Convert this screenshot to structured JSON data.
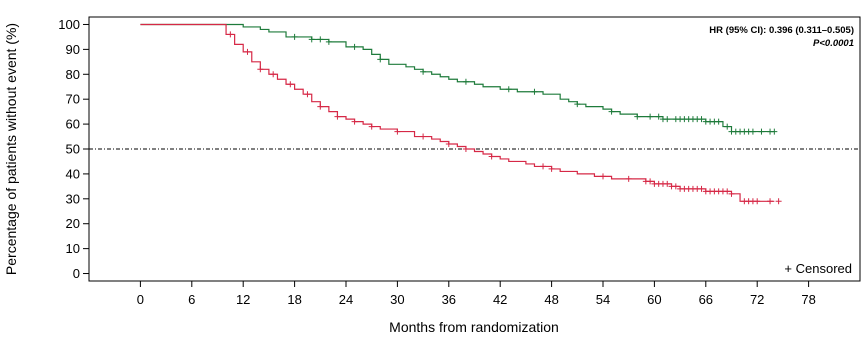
{
  "chart_data": {
    "type": "line",
    "subtype": "kaplan-meier",
    "title": "",
    "xlabel": "Months from randomization",
    "ylabel": "Percentage of patients without event (%)",
    "xlim": [
      -6,
      84
    ],
    "ylim": [
      -3,
      103
    ],
    "x_ticks": [
      0,
      6,
      12,
      18,
      24,
      30,
      36,
      42,
      48,
      54,
      60,
      66,
      72,
      78
    ],
    "y_ticks": [
      0,
      10,
      20,
      30,
      40,
      50,
      60,
      70,
      80,
      90,
      100
    ],
    "reference_line": {
      "y": 50,
      "style": "dash-dot",
      "color": "#000000"
    },
    "annotation": {
      "hr_text": "HR (95% CI): 0.396 (0.311–0.505)",
      "p_text": "P<0.0001"
    },
    "legend": {
      "censored_label": "+ Censored",
      "placement": "bottom-right"
    },
    "grid": false,
    "series": [
      {
        "color": "#1e7b3b",
        "points": [
          [
            0,
            100
          ],
          [
            9,
            100
          ],
          [
            12,
            99
          ],
          [
            14,
            98
          ],
          [
            15,
            97
          ],
          [
            17,
            95
          ],
          [
            19,
            95
          ],
          [
            20,
            94
          ],
          [
            22,
            93
          ],
          [
            24,
            91
          ],
          [
            26,
            90
          ],
          [
            27,
            88
          ],
          [
            28,
            86
          ],
          [
            29,
            84
          ],
          [
            31,
            83
          ],
          [
            32,
            82
          ],
          [
            33,
            81
          ],
          [
            34,
            80
          ],
          [
            35,
            79
          ],
          [
            36,
            78
          ],
          [
            37,
            77
          ],
          [
            39,
            76
          ],
          [
            40,
            75
          ],
          [
            42,
            74
          ],
          [
            44,
            73
          ],
          [
            46,
            73
          ],
          [
            47,
            72
          ],
          [
            49,
            70
          ],
          [
            50,
            69
          ],
          [
            51,
            68
          ],
          [
            52,
            67
          ],
          [
            54,
            66
          ],
          [
            55,
            65
          ],
          [
            56,
            64
          ],
          [
            58,
            63
          ],
          [
            59,
            63
          ],
          [
            61,
            62
          ],
          [
            64,
            62
          ],
          [
            66,
            61
          ],
          [
            67,
            61
          ],
          [
            68,
            59
          ],
          [
            69,
            57
          ],
          [
            71,
            57
          ],
          [
            74,
            57
          ]
        ],
        "censored": [
          18,
          20,
          21,
          22,
          25,
          28,
          33,
          38,
          43,
          46,
          51,
          55,
          58,
          59.5,
          60.5,
          61,
          61.5,
          62.5,
          63,
          63.5,
          64,
          64.5,
          65,
          65.5,
          66,
          66.5,
          67,
          67.5,
          68.5,
          69,
          69.5,
          70,
          70.5,
          71,
          71.5,
          72.5,
          73.5,
          74
        ]
      },
      {
        "color": "#d62846",
        "points": [
          [
            0,
            100
          ],
          [
            9,
            100
          ],
          [
            10,
            96
          ],
          [
            11,
            92
          ],
          [
            12,
            89
          ],
          [
            13,
            85
          ],
          [
            14,
            82
          ],
          [
            15,
            80
          ],
          [
            16,
            78
          ],
          [
            17,
            76
          ],
          [
            18,
            74
          ],
          [
            19,
            72
          ],
          [
            20,
            69
          ],
          [
            21,
            67
          ],
          [
            22,
            65
          ],
          [
            23,
            63
          ],
          [
            24,
            62
          ],
          [
            25,
            61
          ],
          [
            26,
            60
          ],
          [
            27,
            59
          ],
          [
            28,
            58
          ],
          [
            30,
            57
          ],
          [
            32,
            55
          ],
          [
            34,
            54
          ],
          [
            35,
            53
          ],
          [
            36,
            52
          ],
          [
            37,
            51
          ],
          [
            38,
            50
          ],
          [
            39,
            49
          ],
          [
            40,
            48
          ],
          [
            41,
            47
          ],
          [
            42,
            46
          ],
          [
            43,
            45
          ],
          [
            45,
            44
          ],
          [
            46,
            43
          ],
          [
            48,
            42
          ],
          [
            49,
            41
          ],
          [
            51,
            40
          ],
          [
            53,
            39
          ],
          [
            55,
            38
          ],
          [
            57,
            38
          ],
          [
            59,
            37
          ],
          [
            60,
            36
          ],
          [
            62,
            35
          ],
          [
            63,
            34
          ],
          [
            64,
            34
          ],
          [
            66,
            33
          ],
          [
            68,
            33
          ],
          [
            69,
            32
          ],
          [
            70,
            29
          ],
          [
            74,
            29
          ]
        ],
        "censored": [
          10.5,
          12.5,
          14,
          15.5,
          17.5,
          19.5,
          21,
          23,
          25,
          27,
          30,
          33,
          36,
          38,
          41,
          47,
          48,
          54,
          57,
          59,
          59.5,
          60,
          60.5,
          61,
          61.5,
          62,
          62.5,
          63,
          63.5,
          64,
          64.5,
          65,
          65.5,
          66,
          66.5,
          67,
          67.5,
          68,
          68.5,
          69,
          70.5,
          71,
          71.5,
          72,
          73.5,
          74.5
        ]
      }
    ]
  }
}
